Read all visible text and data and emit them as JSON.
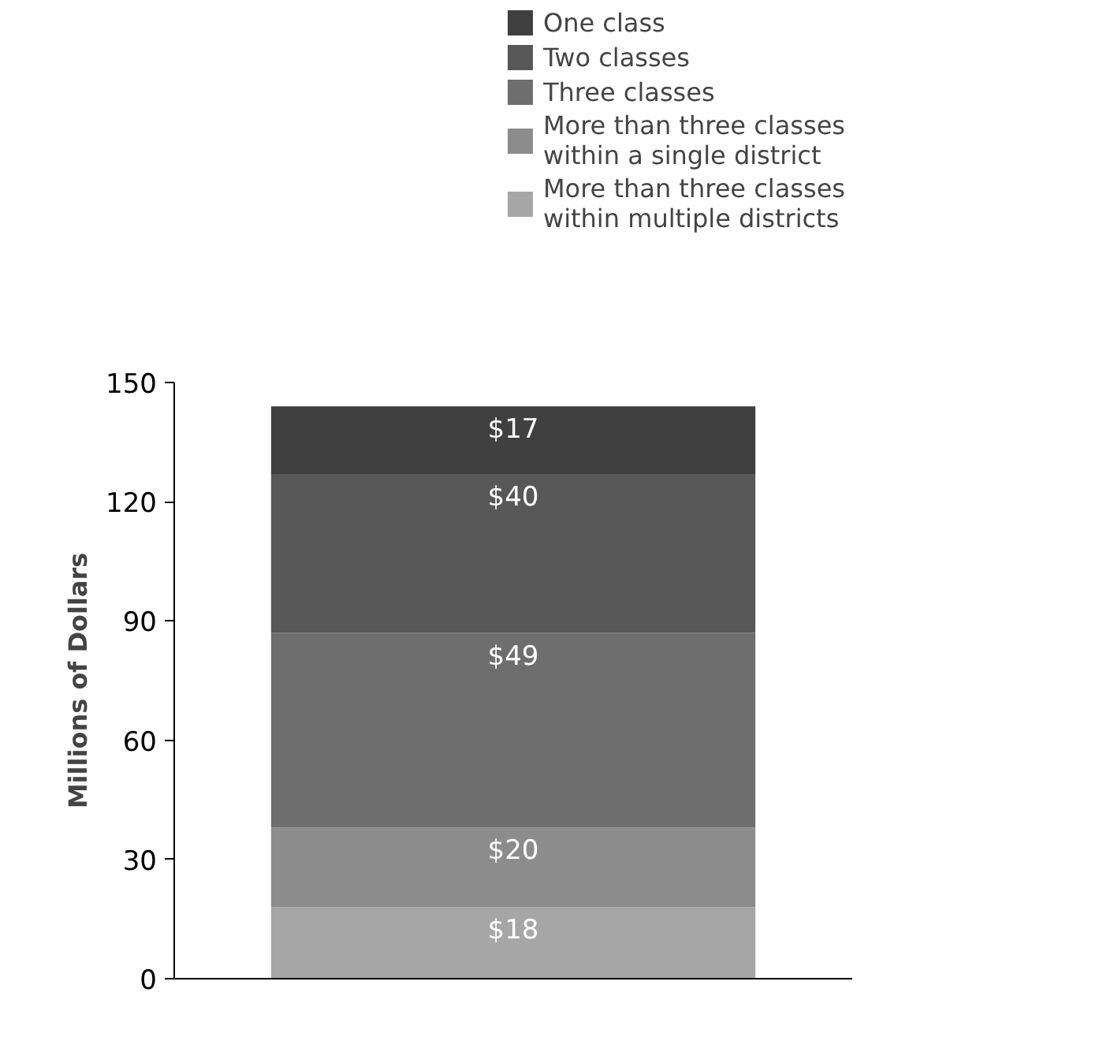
{
  "chart_data": {
    "type": "bar",
    "stacked": true,
    "categories": [
      null
    ],
    "ylabel": "Millions of Dollars",
    "ylim": [
      0,
      150
    ],
    "yticks": [
      0,
      30,
      60,
      90,
      120,
      150
    ],
    "tick_labels": "y",
    "grid": false,
    "legend": "top right",
    "series": [
      {
        "name": "More than three classes within multiple districts",
        "color": "#a6a6a6",
        "values": [
          18
        ],
        "value_labels": [
          "$18"
        ]
      },
      {
        "name": "More than three classes within a single district",
        "color": "#8c8c8c",
        "values": [
          20
        ],
        "value_labels": [
          "$20"
        ]
      },
      {
        "name": "Three classes",
        "color": "#6e6e6e",
        "values": [
          49
        ],
        "value_labels": [
          "$49"
        ]
      },
      {
        "name": "Two classes",
        "color": "#575757",
        "values": [
          40
        ],
        "value_labels": [
          "$40"
        ]
      },
      {
        "name": "One class",
        "color": "#404040",
        "values": [
          17
        ],
        "value_labels": [
          "$17"
        ]
      }
    ]
  }
}
